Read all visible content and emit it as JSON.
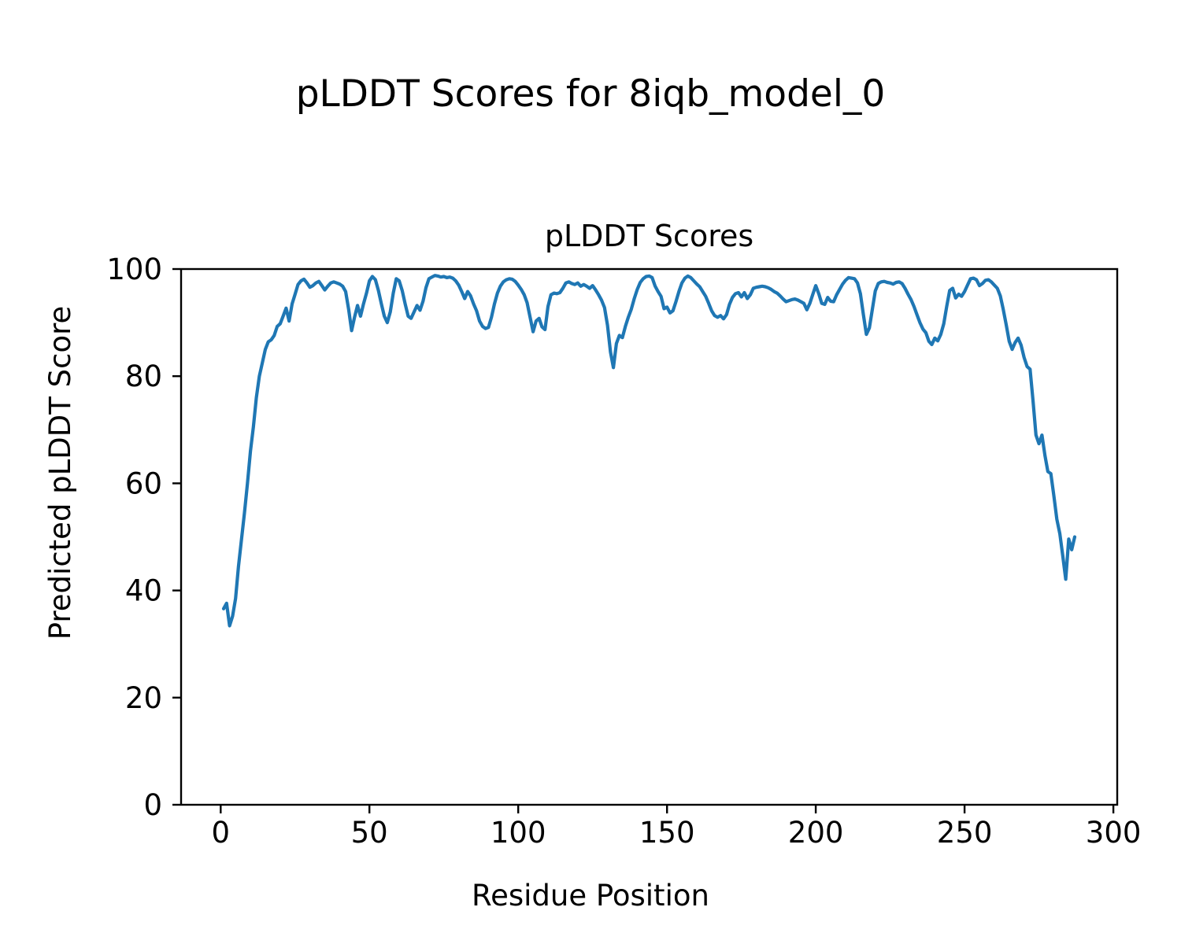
{
  "figure": {
    "title": "pLDDT Scores for 8iqb_model_0"
  },
  "chart_data": {
    "type": "line",
    "title": "pLDDT Scores",
    "xlabel": "Residue Position",
    "ylabel": "Predicted pLDDT Score",
    "xlim": [
      -13.3,
      301.3
    ],
    "ylim": [
      0,
      100
    ],
    "x_ticks": [
      0,
      50,
      100,
      150,
      200,
      250,
      300
    ],
    "y_ticks": [
      0,
      20,
      40,
      60,
      80,
      100
    ],
    "grid": false,
    "legend": null,
    "axis_color": "#000000",
    "series": [
      {
        "name": "pLDDT",
        "color": "#1f77b4",
        "points": [
          [
            1,
            36.6
          ],
          [
            2,
            37.6
          ],
          [
            3,
            33.4
          ],
          [
            4,
            35.2
          ],
          [
            5,
            38.5
          ],
          [
            6,
            44.5
          ],
          [
            7,
            49.5
          ],
          [
            8,
            54.5
          ],
          [
            9,
            60.0
          ],
          [
            10,
            66.0
          ],
          [
            11,
            70.5
          ],
          [
            12,
            76.0
          ],
          [
            13,
            80.0
          ],
          [
            14,
            82.5
          ],
          [
            15,
            85.0
          ],
          [
            16,
            86.4
          ],
          [
            17,
            86.8
          ],
          [
            18,
            87.6
          ],
          [
            19,
            89.3
          ],
          [
            20,
            89.8
          ],
          [
            21,
            91.2
          ],
          [
            22,
            92.7
          ],
          [
            23,
            90.3
          ],
          [
            24,
            93.5
          ],
          [
            25,
            95.3
          ],
          [
            26,
            97.1
          ],
          [
            27,
            97.8
          ],
          [
            28,
            98.1
          ],
          [
            29,
            97.4
          ],
          [
            30,
            96.6
          ],
          [
            31,
            96.9
          ],
          [
            32,
            97.4
          ],
          [
            33,
            97.7
          ],
          [
            34,
            96.9
          ],
          [
            35,
            96.1
          ],
          [
            36,
            96.8
          ],
          [
            37,
            97.4
          ],
          [
            38,
            97.6
          ],
          [
            39,
            97.4
          ],
          [
            40,
            97.2
          ],
          [
            41,
            96.8
          ],
          [
            42,
            95.8
          ],
          [
            43,
            92.5
          ],
          [
            44,
            88.5
          ],
          [
            45,
            91.0
          ],
          [
            46,
            93.2
          ],
          [
            47,
            91.2
          ],
          [
            48,
            93.5
          ],
          [
            49,
            95.5
          ],
          [
            50,
            97.8
          ],
          [
            51,
            98.6
          ],
          [
            52,
            98.0
          ],
          [
            53,
            96.0
          ],
          [
            54,
            93.5
          ],
          [
            55,
            91.2
          ],
          [
            56,
            90.0
          ],
          [
            57,
            92.0
          ],
          [
            58,
            95.5
          ],
          [
            59,
            98.2
          ],
          [
            60,
            97.8
          ],
          [
            61,
            96.0
          ],
          [
            62,
            93.5
          ],
          [
            63,
            91.2
          ],
          [
            64,
            90.8
          ],
          [
            65,
            92.0
          ],
          [
            66,
            93.2
          ],
          [
            67,
            92.3
          ],
          [
            68,
            94.0
          ],
          [
            69,
            96.5
          ],
          [
            70,
            98.2
          ],
          [
            71,
            98.5
          ],
          [
            72,
            98.8
          ],
          [
            73,
            98.7
          ],
          [
            74,
            98.5
          ],
          [
            75,
            98.6
          ],
          [
            76,
            98.4
          ],
          [
            77,
            98.5
          ],
          [
            78,
            98.3
          ],
          [
            79,
            97.8
          ],
          [
            80,
            97.0
          ],
          [
            81,
            95.8
          ],
          [
            82,
            94.5
          ],
          [
            83,
            95.8
          ],
          [
            84,
            95.0
          ],
          [
            85,
            93.5
          ],
          [
            86,
            92.2
          ],
          [
            87,
            90.3
          ],
          [
            88,
            89.3
          ],
          [
            89,
            88.9
          ],
          [
            90,
            89.1
          ],
          [
            91,
            91.0
          ],
          [
            92,
            93.5
          ],
          [
            93,
            95.5
          ],
          [
            94,
            96.8
          ],
          [
            95,
            97.6
          ],
          [
            96,
            98.0
          ],
          [
            97,
            98.2
          ],
          [
            98,
            98.1
          ],
          [
            99,
            97.7
          ],
          [
            100,
            97.0
          ],
          [
            101,
            96.2
          ],
          [
            102,
            95.2
          ],
          [
            103,
            93.7
          ],
          [
            104,
            91.0
          ],
          [
            105,
            88.3
          ],
          [
            106,
            90.3
          ],
          [
            107,
            90.8
          ],
          [
            108,
            89.2
          ],
          [
            109,
            88.7
          ],
          [
            110,
            93.0
          ],
          [
            111,
            95.2
          ],
          [
            112,
            95.5
          ],
          [
            113,
            95.4
          ],
          [
            114,
            95.6
          ],
          [
            115,
            96.4
          ],
          [
            116,
            97.4
          ],
          [
            117,
            97.6
          ],
          [
            118,
            97.3
          ],
          [
            119,
            97.1
          ],
          [
            120,
            97.4
          ],
          [
            121,
            96.8
          ],
          [
            122,
            97.1
          ],
          [
            123,
            96.8
          ],
          [
            124,
            96.4
          ],
          [
            125,
            96.9
          ],
          [
            126,
            96.1
          ],
          [
            127,
            95.2
          ],
          [
            128,
            94.2
          ],
          [
            129,
            92.8
          ],
          [
            130,
            89.5
          ],
          [
            131,
            84.5
          ],
          [
            132,
            81.6
          ],
          [
            133,
            86.1
          ],
          [
            134,
            87.6
          ],
          [
            135,
            87.2
          ],
          [
            136,
            89.3
          ],
          [
            137,
            91.0
          ],
          [
            138,
            92.5
          ],
          [
            139,
            94.5
          ],
          [
            140,
            96.2
          ],
          [
            141,
            97.5
          ],
          [
            142,
            98.2
          ],
          [
            143,
            98.6
          ],
          [
            144,
            98.7
          ],
          [
            145,
            98.4
          ],
          [
            146,
            96.8
          ],
          [
            147,
            95.8
          ],
          [
            148,
            94.9
          ],
          [
            149,
            92.6
          ],
          [
            150,
            92.9
          ],
          [
            151,
            91.8
          ],
          [
            152,
            92.2
          ],
          [
            153,
            93.9
          ],
          [
            154,
            95.8
          ],
          [
            155,
            97.4
          ],
          [
            156,
            98.3
          ],
          [
            157,
            98.7
          ],
          [
            158,
            98.4
          ],
          [
            159,
            97.8
          ],
          [
            160,
            97.2
          ],
          [
            161,
            96.7
          ],
          [
            162,
            95.8
          ],
          [
            163,
            94.9
          ],
          [
            164,
            93.6
          ],
          [
            165,
            92.2
          ],
          [
            166,
            91.3
          ],
          [
            167,
            91.0
          ],
          [
            168,
            91.3
          ],
          [
            169,
            90.7
          ],
          [
            170,
            91.5
          ],
          [
            171,
            93.4
          ],
          [
            172,
            94.7
          ],
          [
            173,
            95.4
          ],
          [
            174,
            95.6
          ],
          [
            175,
            94.8
          ],
          [
            176,
            95.6
          ],
          [
            177,
            94.5
          ],
          [
            178,
            95.2
          ],
          [
            179,
            96.4
          ],
          [
            180,
            96.6
          ],
          [
            181,
            96.7
          ],
          [
            182,
            96.8
          ],
          [
            183,
            96.7
          ],
          [
            184,
            96.5
          ],
          [
            185,
            96.2
          ],
          [
            186,
            95.8
          ],
          [
            187,
            95.5
          ],
          [
            188,
            95.0
          ],
          [
            189,
            94.4
          ],
          [
            190,
            93.9
          ],
          [
            191,
            94.1
          ],
          [
            192,
            94.3
          ],
          [
            193,
            94.4
          ],
          [
            194,
            94.2
          ],
          [
            195,
            93.9
          ],
          [
            196,
            93.6
          ],
          [
            197,
            92.4
          ],
          [
            198,
            93.6
          ],
          [
            199,
            95.3
          ],
          [
            200,
            96.9
          ],
          [
            201,
            95.4
          ],
          [
            202,
            93.6
          ],
          [
            203,
            93.4
          ],
          [
            204,
            94.7
          ],
          [
            205,
            94.0
          ],
          [
            206,
            93.9
          ],
          [
            207,
            95.2
          ],
          [
            208,
            96.2
          ],
          [
            209,
            97.2
          ],
          [
            210,
            97.9
          ],
          [
            211,
            98.4
          ],
          [
            212,
            98.3
          ],
          [
            213,
            98.2
          ],
          [
            214,
            97.4
          ],
          [
            215,
            95.4
          ],
          [
            216,
            91.5
          ],
          [
            217,
            87.8
          ],
          [
            218,
            89.0
          ],
          [
            219,
            92.5
          ],
          [
            220,
            95.9
          ],
          [
            221,
            97.3
          ],
          [
            222,
            97.6
          ],
          [
            223,
            97.7
          ],
          [
            224,
            97.5
          ],
          [
            225,
            97.4
          ],
          [
            226,
            97.2
          ],
          [
            227,
            97.5
          ],
          [
            228,
            97.6
          ],
          [
            229,
            97.3
          ],
          [
            230,
            96.4
          ],
          [
            231,
            95.3
          ],
          [
            232,
            94.3
          ],
          [
            233,
            93.0
          ],
          [
            234,
            91.5
          ],
          [
            235,
            90.0
          ],
          [
            236,
            88.8
          ],
          [
            237,
            88.1
          ],
          [
            238,
            86.5
          ],
          [
            239,
            85.9
          ],
          [
            240,
            87.1
          ],
          [
            241,
            86.6
          ],
          [
            242,
            87.8
          ],
          [
            243,
            89.8
          ],
          [
            244,
            93.0
          ],
          [
            245,
            96.0
          ],
          [
            246,
            96.4
          ],
          [
            247,
            94.6
          ],
          [
            248,
            95.3
          ],
          [
            249,
            94.9
          ],
          [
            250,
            95.8
          ],
          [
            251,
            97.0
          ],
          [
            252,
            98.2
          ],
          [
            253,
            98.3
          ],
          [
            254,
            98.0
          ],
          [
            255,
            96.9
          ],
          [
            256,
            97.3
          ],
          [
            257,
            97.9
          ],
          [
            258,
            98.0
          ],
          [
            259,
            97.6
          ],
          [
            260,
            97.0
          ],
          [
            261,
            96.4
          ],
          [
            262,
            95.0
          ],
          [
            263,
            92.5
          ],
          [
            264,
            89.6
          ],
          [
            265,
            86.5
          ],
          [
            266,
            85.0
          ],
          [
            267,
            86.3
          ],
          [
            268,
            87.1
          ],
          [
            269,
            85.8
          ],
          [
            270,
            83.5
          ],
          [
            271,
            81.8
          ],
          [
            272,
            81.3
          ],
          [
            273,
            75.5
          ],
          [
            274,
            69.0
          ],
          [
            275,
            67.4
          ],
          [
            276,
            69.0
          ],
          [
            277,
            65.2
          ],
          [
            278,
            62.2
          ],
          [
            279,
            61.8
          ],
          [
            280,
            57.7
          ],
          [
            281,
            53.3
          ],
          [
            282,
            50.6
          ],
          [
            283,
            46.5
          ],
          [
            284,
            42.1
          ],
          [
            285,
            49.6
          ],
          [
            286,
            47.6
          ],
          [
            287,
            50.0
          ]
        ]
      }
    ]
  }
}
